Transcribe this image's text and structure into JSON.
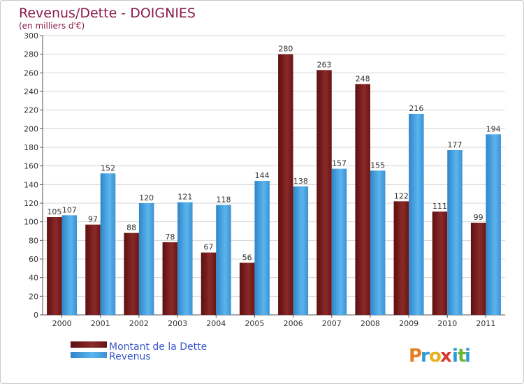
{
  "chart_data": {
    "type": "bar",
    "title": "Revenus/Dette - DOIGNIES",
    "subtitle": "(en milliers d'€)",
    "categories": [
      "2000",
      "2001",
      "2002",
      "2003",
      "2004",
      "2005",
      "2006",
      "2007",
      "2008",
      "2009",
      "2010",
      "2011"
    ],
    "series": [
      {
        "name": "Montant de la Dette",
        "color": "#7a1a1a",
        "values": [
          105,
          97,
          88,
          78,
          67,
          56,
          280,
          263,
          248,
          122,
          111,
          99
        ]
      },
      {
        "name": "Revenus",
        "color": "#4aa8e8",
        "values": [
          107,
          152,
          120,
          121,
          118,
          144,
          138,
          157,
          155,
          216,
          177,
          194
        ]
      }
    ],
    "ylim": [
      0,
      300
    ],
    "ytick_step": 20,
    "grid": true,
    "legend": "bottom-left"
  },
  "branding": {
    "logo_letters": [
      "P",
      "r",
      "o",
      "x",
      "i",
      "t",
      "i"
    ],
    "logo_colors": [
      "#e87d1e",
      "#2f9ad8",
      "#e8b01e",
      "#d83a2f",
      "#2f9ad8",
      "#6ab82f",
      "#2f9ad8"
    ]
  }
}
